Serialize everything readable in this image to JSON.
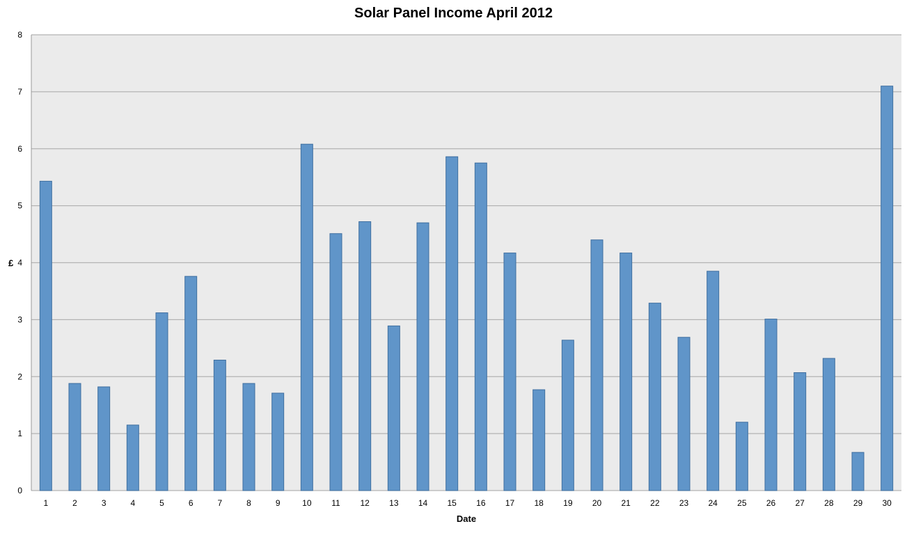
{
  "chart_data": {
    "type": "bar",
    "title": "Solar Panel Income April 2012",
    "xlabel": "Date",
    "ylabel": "£",
    "ylim": [
      0,
      8
    ],
    "yticks": [
      "0",
      "1",
      "2",
      "3",
      "4",
      "5",
      "6",
      "7",
      "8"
    ],
    "grid": true,
    "legend": "none",
    "categories": [
      "1",
      "2",
      "3",
      "4",
      "5",
      "6",
      "7",
      "8",
      "9",
      "10",
      "11",
      "12",
      "13",
      "14",
      "15",
      "16",
      "17",
      "18",
      "19",
      "20",
      "21",
      "22",
      "23",
      "24",
      "25",
      "26",
      "27",
      "28",
      "29",
      "30"
    ],
    "values": [
      5.43,
      1.88,
      1.82,
      1.15,
      3.12,
      3.76,
      2.29,
      1.88,
      1.71,
      6.08,
      4.51,
      4.72,
      2.89,
      4.7,
      5.86,
      5.75,
      4.17,
      1.77,
      2.64,
      4.4,
      4.17,
      3.29,
      2.69,
      3.85,
      1.2,
      3.01,
      2.07,
      2.32,
      0.67,
      7.1
    ],
    "colors": {
      "bar_fill": "#6095c9",
      "bar_stroke": "#3f6fa0",
      "plot_bg": "#ebebeb",
      "grid": "#b3b3b3"
    }
  }
}
